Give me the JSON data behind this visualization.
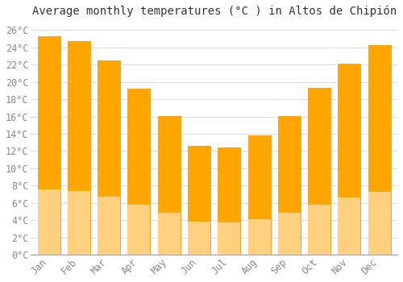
{
  "title": "Average monthly temperatures (°C ) in Altos de Chipión",
  "months": [
    "Jan",
    "Feb",
    "Mar",
    "Apr",
    "May",
    "Jun",
    "Jul",
    "Aug",
    "Sep",
    "Oct",
    "Nov",
    "Dec"
  ],
  "values": [
    25.3,
    24.7,
    22.5,
    19.2,
    16.1,
    12.6,
    12.4,
    13.8,
    16.1,
    19.3,
    22.1,
    24.3
  ],
  "bar_color_top": "#FFA500",
  "bar_color_bottom": "#FFD080",
  "bar_edge_color": "#E8950A",
  "background_color": "#FFFFFF",
  "grid_color": "#DDDDDD",
  "ylim": [
    0,
    27
  ],
  "ytick_step": 2,
  "title_fontsize": 10,
  "tick_fontsize": 8.5,
  "font_family": "monospace"
}
